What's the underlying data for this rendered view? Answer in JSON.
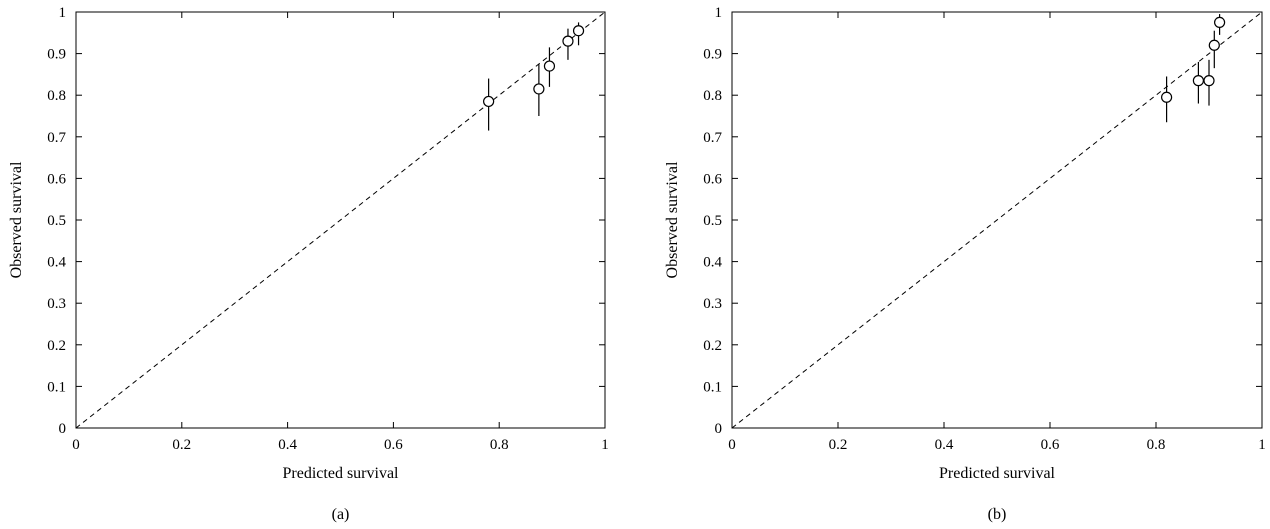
{
  "chart_data": [
    {
      "type": "scatter",
      "caption": "(a)",
      "xlabel": "Predicted survival",
      "ylabel": "Observed survival",
      "xlim": [
        0,
        1
      ],
      "ylim": [
        0,
        1
      ],
      "xticks": [
        "0",
        "0.2",
        "0.4",
        "0.6",
        "0.8",
        "1"
      ],
      "yticks": [
        "0",
        "0.1",
        "0.2",
        "0.3",
        "0.4",
        "0.5",
        "0.6",
        "0.7",
        "0.8",
        "0.9",
        "1"
      ],
      "reference_line": "y = x (dashed)",
      "grid": false,
      "marker": "open circle with vertical error bar",
      "points": [
        {
          "x": 0.78,
          "y": 0.785,
          "lo": 0.715,
          "hi": 0.84
        },
        {
          "x": 0.875,
          "y": 0.815,
          "lo": 0.75,
          "hi": 0.875
        },
        {
          "x": 0.895,
          "y": 0.87,
          "lo": 0.82,
          "hi": 0.915
        },
        {
          "x": 0.93,
          "y": 0.93,
          "lo": 0.885,
          "hi": 0.96
        },
        {
          "x": 0.95,
          "y": 0.955,
          "lo": 0.92,
          "hi": 0.975
        }
      ]
    },
    {
      "type": "scatter",
      "caption": "(b)",
      "xlabel": "Predicted survival",
      "ylabel": "Observed survival",
      "xlim": [
        0,
        1
      ],
      "ylim": [
        0,
        1
      ],
      "xticks": [
        "0",
        "0.2",
        "0.4",
        "0.6",
        "0.8",
        "1"
      ],
      "yticks": [
        "0",
        "0.1",
        "0.2",
        "0.3",
        "0.4",
        "0.5",
        "0.6",
        "0.7",
        "0.8",
        "0.9",
        "1"
      ],
      "reference_line": "y = x (dashed)",
      "grid": false,
      "marker": "open circle with vertical error bar",
      "points": [
        {
          "x": 0.82,
          "y": 0.795,
          "lo": 0.735,
          "hi": 0.845
        },
        {
          "x": 0.88,
          "y": 0.835,
          "lo": 0.78,
          "hi": 0.88
        },
        {
          "x": 0.9,
          "y": 0.835,
          "lo": 0.775,
          "hi": 0.885
        },
        {
          "x": 0.91,
          "y": 0.92,
          "lo": 0.865,
          "hi": 0.955
        },
        {
          "x": 0.92,
          "y": 0.975,
          "lo": 0.945,
          "hi": 0.995
        }
      ]
    }
  ]
}
